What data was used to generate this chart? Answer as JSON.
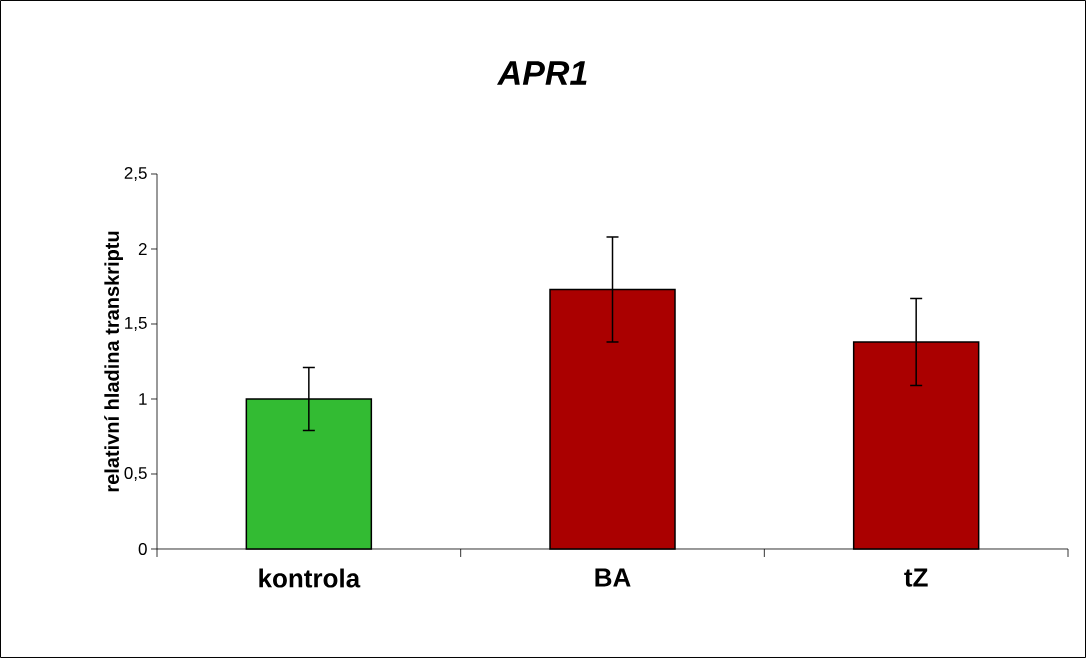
{
  "chart_data": {
    "type": "bar",
    "title": "APR1",
    "ylabel": "relativní hladina transkriptu",
    "categories": [
      "kontrola",
      "BA",
      "tZ"
    ],
    "values": [
      1.0,
      1.73,
      1.38
    ],
    "errors": [
      0.21,
      0.35,
      0.29
    ],
    "colors": [
      "#33bb33",
      "#aa0000",
      "#aa0000"
    ],
    "ylim": [
      0,
      2.5
    ],
    "yticks": [
      0,
      {
        "value": 0.5,
        "label": "0,5"
      },
      1,
      {
        "value": 1.5,
        "label": "1,5"
      },
      2,
      {
        "value": 2.5,
        "label": "2,5"
      }
    ],
    "grid": false
  }
}
